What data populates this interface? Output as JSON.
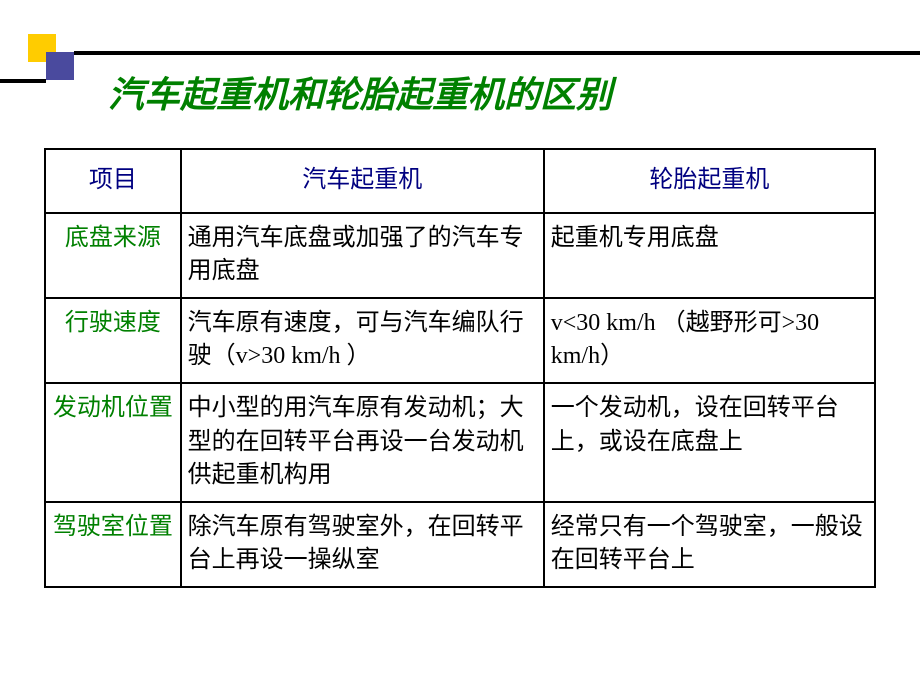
{
  "title": "汽车起重机和轮胎起重机的区别",
  "colors": {
    "title": "#008000",
    "header": "#000080",
    "row_label": "#008000",
    "cell_text": "#000000",
    "yellow_square": "#ffcc00",
    "purple_square": "#4a4a9e",
    "border": "#000000"
  },
  "table": {
    "headers": {
      "col1": "项目",
      "col2": "汽车起重机",
      "col3": "轮胎起重机"
    },
    "rows": [
      {
        "label": "底盘来源",
        "col2": "通用汽车底盘或加强了的汽车专用底盘",
        "col3": "起重机专用底盘"
      },
      {
        "label": "行驶速度",
        "col2": "汽车原有速度，可与汽车编队行驶（v>30 km/h ）",
        "col3": "v<30 km/h （越野形可>30 km/h）"
      },
      {
        "label": "发动机位置",
        "col2": "中小型的用汽车原有发动机；大型的在回转平台再设一台发动机供起重机构用",
        "col3": "一个发动机，设在回转平台上，或设在底盘上"
      },
      {
        "label": "驾驶室位置",
        "col2": "除汽车原有驾驶室外，在回转平台上再设一操纵室",
        "col3": "经常只有一个驾驶室，一般设在回转平台上"
      }
    ]
  }
}
